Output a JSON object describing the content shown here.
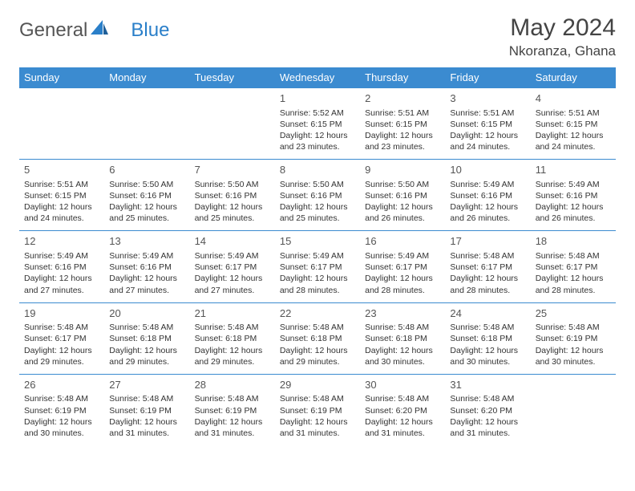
{
  "logo": {
    "text1": "General",
    "text2": "Blue"
  },
  "title": "May 2024",
  "location": "Nkoranza, Ghana",
  "headers": [
    "Sunday",
    "Monday",
    "Tuesday",
    "Wednesday",
    "Thursday",
    "Friday",
    "Saturday"
  ],
  "colors": {
    "header_bg": "#3b8bd0",
    "header_fg": "#ffffff",
    "border": "#3b8bd0",
    "logo_gray": "#555555",
    "logo_blue": "#2a7fc9",
    "text": "#333333"
  },
  "weeks": [
    [
      null,
      null,
      null,
      {
        "n": "1",
        "sr": "5:52 AM",
        "ss": "6:15 PM",
        "dl": "12 hours and 23 minutes."
      },
      {
        "n": "2",
        "sr": "5:51 AM",
        "ss": "6:15 PM",
        "dl": "12 hours and 23 minutes."
      },
      {
        "n": "3",
        "sr": "5:51 AM",
        "ss": "6:15 PM",
        "dl": "12 hours and 24 minutes."
      },
      {
        "n": "4",
        "sr": "5:51 AM",
        "ss": "6:15 PM",
        "dl": "12 hours and 24 minutes."
      }
    ],
    [
      {
        "n": "5",
        "sr": "5:51 AM",
        "ss": "6:15 PM",
        "dl": "12 hours and 24 minutes."
      },
      {
        "n": "6",
        "sr": "5:50 AM",
        "ss": "6:16 PM",
        "dl": "12 hours and 25 minutes."
      },
      {
        "n": "7",
        "sr": "5:50 AM",
        "ss": "6:16 PM",
        "dl": "12 hours and 25 minutes."
      },
      {
        "n": "8",
        "sr": "5:50 AM",
        "ss": "6:16 PM",
        "dl": "12 hours and 25 minutes."
      },
      {
        "n": "9",
        "sr": "5:50 AM",
        "ss": "6:16 PM",
        "dl": "12 hours and 26 minutes."
      },
      {
        "n": "10",
        "sr": "5:49 AM",
        "ss": "6:16 PM",
        "dl": "12 hours and 26 minutes."
      },
      {
        "n": "11",
        "sr": "5:49 AM",
        "ss": "6:16 PM",
        "dl": "12 hours and 26 minutes."
      }
    ],
    [
      {
        "n": "12",
        "sr": "5:49 AM",
        "ss": "6:16 PM",
        "dl": "12 hours and 27 minutes."
      },
      {
        "n": "13",
        "sr": "5:49 AM",
        "ss": "6:16 PM",
        "dl": "12 hours and 27 minutes."
      },
      {
        "n": "14",
        "sr": "5:49 AM",
        "ss": "6:17 PM",
        "dl": "12 hours and 27 minutes."
      },
      {
        "n": "15",
        "sr": "5:49 AM",
        "ss": "6:17 PM",
        "dl": "12 hours and 28 minutes."
      },
      {
        "n": "16",
        "sr": "5:49 AM",
        "ss": "6:17 PM",
        "dl": "12 hours and 28 minutes."
      },
      {
        "n": "17",
        "sr": "5:48 AM",
        "ss": "6:17 PM",
        "dl": "12 hours and 28 minutes."
      },
      {
        "n": "18",
        "sr": "5:48 AM",
        "ss": "6:17 PM",
        "dl": "12 hours and 28 minutes."
      }
    ],
    [
      {
        "n": "19",
        "sr": "5:48 AM",
        "ss": "6:17 PM",
        "dl": "12 hours and 29 minutes."
      },
      {
        "n": "20",
        "sr": "5:48 AM",
        "ss": "6:18 PM",
        "dl": "12 hours and 29 minutes."
      },
      {
        "n": "21",
        "sr": "5:48 AM",
        "ss": "6:18 PM",
        "dl": "12 hours and 29 minutes."
      },
      {
        "n": "22",
        "sr": "5:48 AM",
        "ss": "6:18 PM",
        "dl": "12 hours and 29 minutes."
      },
      {
        "n": "23",
        "sr": "5:48 AM",
        "ss": "6:18 PM",
        "dl": "12 hours and 30 minutes."
      },
      {
        "n": "24",
        "sr": "5:48 AM",
        "ss": "6:18 PM",
        "dl": "12 hours and 30 minutes."
      },
      {
        "n": "25",
        "sr": "5:48 AM",
        "ss": "6:19 PM",
        "dl": "12 hours and 30 minutes."
      }
    ],
    [
      {
        "n": "26",
        "sr": "5:48 AM",
        "ss": "6:19 PM",
        "dl": "12 hours and 30 minutes."
      },
      {
        "n": "27",
        "sr": "5:48 AM",
        "ss": "6:19 PM",
        "dl": "12 hours and 31 minutes."
      },
      {
        "n": "28",
        "sr": "5:48 AM",
        "ss": "6:19 PM",
        "dl": "12 hours and 31 minutes."
      },
      {
        "n": "29",
        "sr": "5:48 AM",
        "ss": "6:19 PM",
        "dl": "12 hours and 31 minutes."
      },
      {
        "n": "30",
        "sr": "5:48 AM",
        "ss": "6:20 PM",
        "dl": "12 hours and 31 minutes."
      },
      {
        "n": "31",
        "sr": "5:48 AM",
        "ss": "6:20 PM",
        "dl": "12 hours and 31 minutes."
      },
      null
    ]
  ],
  "labels": {
    "sunrise": "Sunrise: ",
    "sunset": "Sunset: ",
    "daylight": "Daylight: "
  }
}
